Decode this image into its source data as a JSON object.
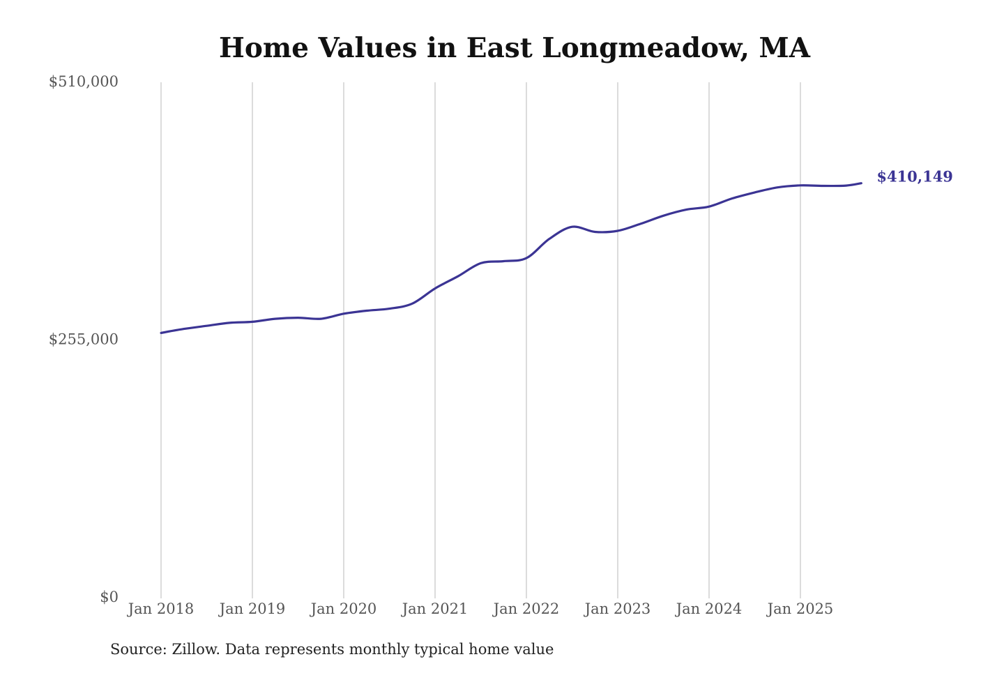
{
  "chart_data": {
    "type": "line",
    "title": "Home Values in East Longmeadow, MA",
    "source": "Source: Zillow. Data represents monthly typical home value",
    "ylim": [
      0,
      510000
    ],
    "y_ticks": [
      {
        "value": 0,
        "label": "$0"
      },
      {
        "value": 255000,
        "label": "$255,000"
      },
      {
        "value": 510000,
        "label": "$510,000"
      }
    ],
    "x_ticks": [
      {
        "value": "2018-01",
        "label": "Jan 2018"
      },
      {
        "value": "2019-01",
        "label": "Jan 2019"
      },
      {
        "value": "2020-01",
        "label": "Jan 2020"
      },
      {
        "value": "2021-01",
        "label": "Jan 2021"
      },
      {
        "value": "2022-01",
        "label": "Jan 2022"
      },
      {
        "value": "2023-01",
        "label": "Jan 2023"
      },
      {
        "value": "2024-01",
        "label": "Jan 2024"
      },
      {
        "value": "2025-01",
        "label": "Jan 2025"
      }
    ],
    "grid": {
      "vertical": true,
      "horizontal": false
    },
    "series": [
      {
        "color": "#3b3494",
        "end_label": "$410,149",
        "points": [
          {
            "x": "2018-01",
            "y": 262000
          },
          {
            "x": "2018-04",
            "y": 266000
          },
          {
            "x": "2018-07",
            "y": 269000
          },
          {
            "x": "2018-10",
            "y": 272000
          },
          {
            "x": "2019-01",
            "y": 273000
          },
          {
            "x": "2019-04",
            "y": 276000
          },
          {
            "x": "2019-07",
            "y": 277000
          },
          {
            "x": "2019-10",
            "y": 276000
          },
          {
            "x": "2020-01",
            "y": 281000
          },
          {
            "x": "2020-04",
            "y": 284000
          },
          {
            "x": "2020-07",
            "y": 286000
          },
          {
            "x": "2020-10",
            "y": 291000
          },
          {
            "x": "2021-01",
            "y": 306000
          },
          {
            "x": "2021-04",
            "y": 318000
          },
          {
            "x": "2021-07",
            "y": 331000
          },
          {
            "x": "2021-10",
            "y": 333000
          },
          {
            "x": "2022-01",
            "y": 336000
          },
          {
            "x": "2022-04",
            "y": 355000
          },
          {
            "x": "2022-07",
            "y": 367000
          },
          {
            "x": "2022-10",
            "y": 362000
          },
          {
            "x": "2023-01",
            "y": 363000
          },
          {
            "x": "2023-04",
            "y": 370000
          },
          {
            "x": "2023-07",
            "y": 378000
          },
          {
            "x": "2023-10",
            "y": 384000
          },
          {
            "x": "2024-01",
            "y": 387000
          },
          {
            "x": "2024-04",
            "y": 395000
          },
          {
            "x": "2024-07",
            "y": 401000
          },
          {
            "x": "2024-10",
            "y": 406000
          },
          {
            "x": "2025-01",
            "y": 408000
          },
          {
            "x": "2025-04",
            "y": 407500
          },
          {
            "x": "2025-07",
            "y": 407800
          },
          {
            "x": "2025-09",
            "y": 410149
          }
        ]
      }
    ]
  }
}
